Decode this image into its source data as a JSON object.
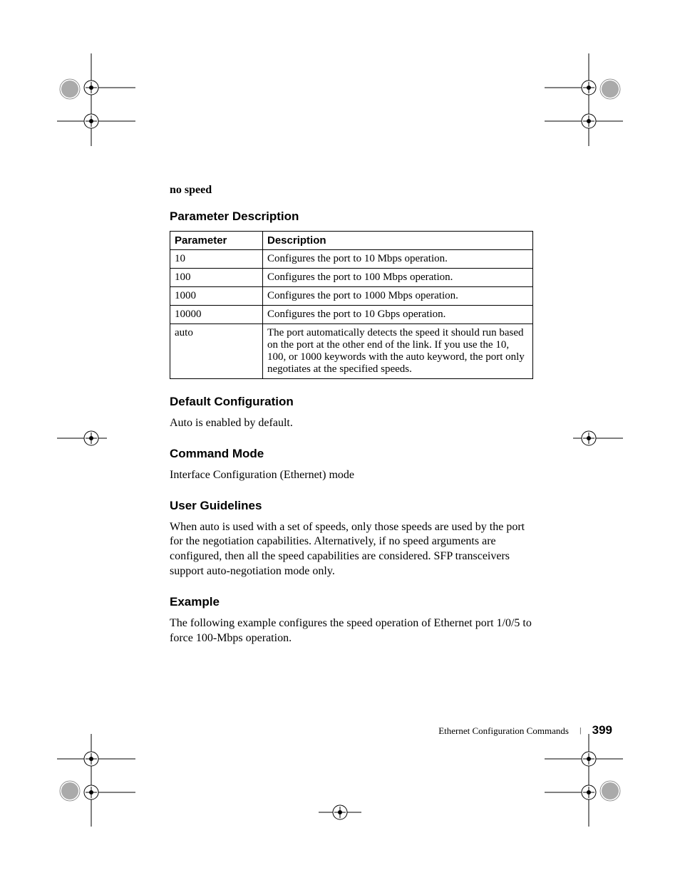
{
  "crop_marks": {
    "stroke": "#000000",
    "rosette_fill": "#888888"
  },
  "intro": {
    "command": "no speed"
  },
  "parameter_section": {
    "heading": "Parameter Description",
    "columns": [
      "Parameter",
      "Description"
    ],
    "rows": [
      {
        "param": "10",
        "desc": "Configures the port to 10 Mbps operation."
      },
      {
        "param": "100",
        "desc": "Configures the port to 100 Mbps operation."
      },
      {
        "param": "1000",
        "desc": "Configures the port to 1000 Mbps operation."
      },
      {
        "param": "10000",
        "desc": "Configures the port to 10 Gbps operation."
      },
      {
        "param": "auto",
        "desc": "The port automatically detects the speed it should run based on the port at the other end of the link. If you use the 10, 100, or 1000 keywords with the auto keyword, the port only negotiates at the specified speeds."
      }
    ]
  },
  "default_config": {
    "heading": "Default Configuration",
    "text": "Auto is enabled by default."
  },
  "command_mode": {
    "heading": "Command Mode",
    "text": "Interface Configuration (Ethernet) mode"
  },
  "user_guidelines": {
    "heading": "User Guidelines",
    "text": "When auto is used with a set of speeds, only those speeds are used by the port for the negotiation capabilities. Alternatively, if no speed arguments are configured, then all the speed capabilities are considered. SFP transceivers support auto-negotiation mode only."
  },
  "example": {
    "heading": "Example",
    "text": "The following example configures the speed operation of Ethernet port 1/0/5 to force 100-Mbps operation."
  },
  "footer": {
    "chapter": "Ethernet Configuration Commands",
    "page": "399"
  }
}
